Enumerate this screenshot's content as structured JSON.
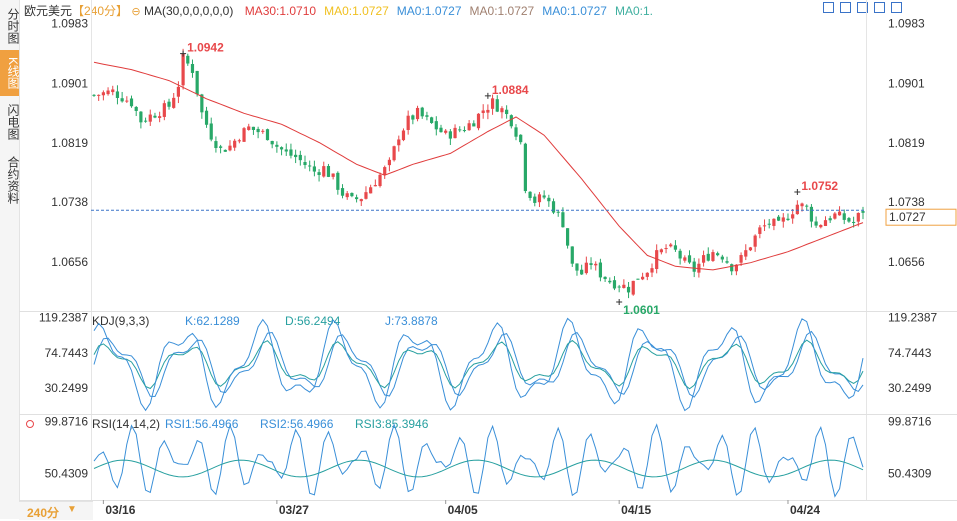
{
  "sidebar": {
    "tabs": [
      {
        "label": "分时图",
        "active": false
      },
      {
        "label": "K线图",
        "active": true
      },
      {
        "label": "闪电图",
        "active": false
      },
      {
        "label": "合约资料",
        "active": false
      }
    ]
  },
  "header": {
    "symbol": "欧元美元",
    "period": "【240分】",
    "ma_params": "MA(30,0,0,0,0,0)",
    "ma_values": [
      {
        "text": "MA30:1.0710",
        "color": "#e03c3c"
      },
      {
        "text": "MA0:1.0727",
        "color": "#f0c020"
      },
      {
        "text": "MA0:1.0727",
        "color": "#3a8fd8"
      },
      {
        "text": "MA0:1.0727",
        "color": "#a08070"
      },
      {
        "text": "MA0:1.0727",
        "color": "#3a8fd8"
      },
      {
        "text": "MA0:1.",
        "color": "#40b0a0"
      }
    ]
  },
  "colors": {
    "up": "#e8484b",
    "down": "#28a868",
    "ma30": "#e03c3c",
    "kdj_k": "#3a8fd8",
    "kdj_d": "#28a0a0",
    "kdj_j": "#3a8fd8",
    "price_line": "#3a73c8",
    "price_tag_border": "#f0a040",
    "price_tag_text": "#e8a035"
  },
  "bottom": {
    "period_button": "240分"
  },
  "chart_data": [
    {
      "type": "candlestick",
      "title": "欧元美元【240分】",
      "y_ticks": [
        "1.0983",
        "1.0901",
        "1.0819",
        "1.0738",
        "1.0656"
      ],
      "ylim": [
        1.059,
        1.0995
      ],
      "x_labels": [
        "03/16",
        "03/27",
        "04/05",
        "04/15",
        "04/24"
      ],
      "annotations": [
        {
          "label": "1.0942",
          "value": 1.0942,
          "kind": "high"
        },
        {
          "label": "1.0884",
          "value": 1.0884,
          "kind": "high"
        },
        {
          "label": "1.0601",
          "value": 1.0601,
          "kind": "low"
        },
        {
          "label": "1.0752",
          "value": 1.0752,
          "kind": "high"
        }
      ],
      "last_price": "1.0727",
      "last_value": 1.0727,
      "ma30_last": 1.071,
      "close_path": [
        [
          0,
          1.0885
        ],
        [
          4,
          1.089
        ],
        [
          8,
          1.0875
        ],
        [
          10,
          1.085
        ],
        [
          13,
          1.086
        ],
        [
          16,
          1.087
        ],
        [
          18,
          1.09
        ],
        [
          19,
          1.0935
        ],
        [
          21,
          1.092
        ],
        [
          23,
          1.086
        ],
        [
          25,
          1.083
        ],
        [
          27,
          1.081
        ],
        [
          29,
          1.0815
        ],
        [
          31,
          1.083
        ],
        [
          33,
          1.084
        ],
        [
          35,
          1.0835
        ],
        [
          37,
          1.083
        ],
        [
          39,
          1.0815
        ],
        [
          41,
          1.0805
        ],
        [
          43,
          1.08
        ],
        [
          45,
          1.079
        ],
        [
          47,
          1.078
        ],
        [
          49,
          1.0785
        ],
        [
          51,
          1.077
        ],
        [
          53,
          1.075
        ],
        [
          55,
          1.074
        ],
        [
          57,
          1.0745
        ],
        [
          59,
          1.076
        ],
        [
          61,
          1.0775
        ],
        [
          63,
          1.079
        ],
        [
          65,
          1.083
        ],
        [
          67,
          1.085
        ],
        [
          69,
          1.086
        ],
        [
          71,
          1.085
        ],
        [
          73,
          1.084
        ],
        [
          75,
          1.083
        ],
        [
          77,
          1.0835
        ],
        [
          79,
          1.084
        ],
        [
          81,
          1.085
        ],
        [
          83,
          1.0865
        ],
        [
          85,
          1.0875
        ],
        [
          87,
          1.0865
        ],
        [
          89,
          1.085
        ],
        [
          91,
          1.082
        ],
        [
          92,
          1.076
        ],
        [
          94,
          1.074
        ],
        [
          96,
          1.0745
        ],
        [
          98,
          1.073
        ],
        [
          100,
          1.071
        ],
        [
          102,
          1.065
        ],
        [
          104,
          1.064
        ],
        [
          106,
          1.0655
        ],
        [
          108,
          1.064
        ],
        [
          110,
          1.063
        ],
        [
          112,
          1.0625
        ],
        [
          114,
          1.062
        ],
        [
          116,
          1.0635
        ],
        [
          118,
          1.0645
        ],
        [
          120,
          1.0665
        ],
        [
          122,
          1.0675
        ],
        [
          124,
          1.067
        ],
        [
          126,
          1.0655
        ],
        [
          128,
          1.0645
        ],
        [
          130,
          1.066
        ],
        [
          132,
          1.067
        ],
        [
          134,
          1.0665
        ],
        [
          136,
          1.065
        ],
        [
          138,
          1.066
        ],
        [
          140,
          1.068
        ],
        [
          142,
          1.07
        ],
        [
          144,
          1.071
        ],
        [
          146,
          1.0705
        ],
        [
          148,
          1.072
        ],
        [
          150,
          1.0735
        ],
        [
          152,
          1.073
        ],
        [
          154,
          1.0705
        ],
        [
          156,
          1.0715
        ],
        [
          158,
          1.072
        ],
        [
          160,
          1.0715
        ],
        [
          162,
          1.071
        ],
        [
          164,
          1.0727
        ]
      ],
      "ma30_path": [
        [
          0,
          1.093
        ],
        [
          8,
          1.092
        ],
        [
          16,
          1.0905
        ],
        [
          24,
          1.088
        ],
        [
          32,
          1.086
        ],
        [
          40,
          1.0845
        ],
        [
          48,
          1.082
        ],
        [
          56,
          1.079
        ],
        [
          62,
          1.0775
        ],
        [
          68,
          1.079
        ],
        [
          76,
          1.0805
        ],
        [
          84,
          1.0835
        ],
        [
          90,
          1.0855
        ],
        [
          96,
          1.083
        ],
        [
          104,
          1.077
        ],
        [
          112,
          1.0705
        ],
        [
          118,
          1.0665
        ],
        [
          124,
          1.065
        ],
        [
          132,
          1.0645
        ],
        [
          140,
          1.0655
        ],
        [
          148,
          1.067
        ],
        [
          156,
          1.069
        ],
        [
          164,
          1.071
        ]
      ]
    },
    {
      "type": "line",
      "title": "KDJ(9,3,3)",
      "legend": [
        {
          "name": "K",
          "text": "K:62.1289"
        },
        {
          "name": "D",
          "text": "D:56.2494"
        },
        {
          "name": "J",
          "text": "J:73.8878"
        }
      ],
      "y_ticks": [
        "119.2387",
        "74.7443",
        "30.2499"
      ],
      "ylim": [
        0,
        125
      ]
    },
    {
      "type": "line",
      "title": "RSI(14,14,2)",
      "legend": [
        {
          "name": "RSI1",
          "text": "RSI1:56.4966"
        },
        {
          "name": "RSI2",
          "text": "RSI2:56.4966"
        },
        {
          "name": "RSI3",
          "text": "RSI3:85.3946"
        }
      ],
      "y_ticks": [
        "99.8716",
        "50.4309"
      ],
      "ylim": [
        25,
        105
      ]
    }
  ]
}
